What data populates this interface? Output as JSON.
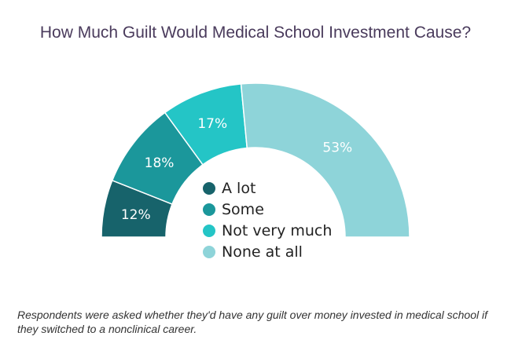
{
  "chart_data": {
    "type": "pie",
    "title": "How Much Guilt Would Medical School Investment Cause?",
    "categories": [
      "A lot",
      "Some",
      "Not very much",
      "None at all"
    ],
    "values": [
      12,
      18,
      17,
      53
    ],
    "unit": "%",
    "data_labels": [
      "12%",
      "18%",
      "17%",
      "53%"
    ],
    "colors": [
      "#17636b",
      "#1b979b",
      "#24c5c6",
      "#8ed4d9"
    ],
    "legend_position": "center"
  },
  "footnote": "Respondents were asked whether they'd have any guilt over money invested in medical school if they switched to a nonclinical career."
}
